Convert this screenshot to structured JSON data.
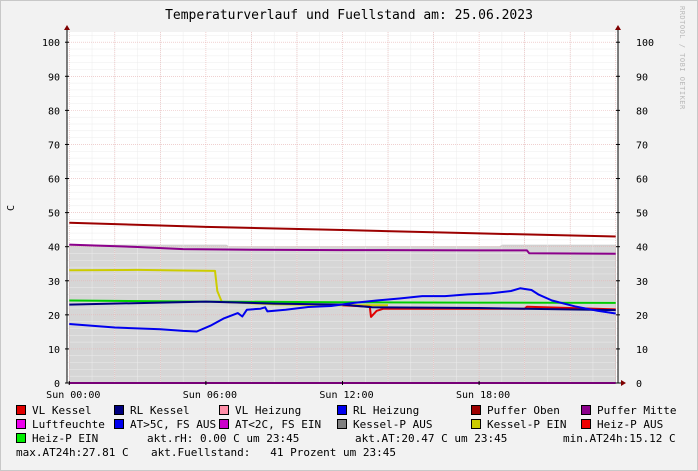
{
  "title": "Temperaturverlauf und Fuellstand am: 25.06.2023",
  "watermark": "RRDTOOL / TOBI OETIKER",
  "chart_data": {
    "type": "line",
    "title": "Temperaturverlauf und Fuellstand am: 25.06.2023",
    "ylabel": "C",
    "xlabel": "",
    "ylim": [
      0,
      103
    ],
    "xlim": [
      -0.1,
      24.1
    ],
    "yticks": [
      0,
      10,
      20,
      30,
      40,
      50,
      60,
      70,
      80,
      90,
      100
    ],
    "xticks": [
      {
        "x": 0,
        "label": "Sun 00:00"
      },
      {
        "x": 6,
        "label": "Sun 06:00"
      },
      {
        "x": 12,
        "label": "Sun 12:00"
      },
      {
        "x": 18,
        "label": "Sun 18:00"
      }
    ],
    "grid": true,
    "area": {
      "name": "Fuellstand",
      "color": "#d6d6d6",
      "points": [
        [
          0,
          40.5
        ],
        [
          6.9,
          40.5
        ],
        [
          7.0,
          40.0
        ],
        [
          18.9,
          40.0
        ],
        [
          19.0,
          40.5
        ],
        [
          24,
          40.5
        ]
      ]
    },
    "series": [
      {
        "name": "Puffer Oben",
        "color": "#9c0000",
        "points": [
          [
            0,
            47
          ],
          [
            6,
            45.8
          ],
          [
            12,
            44.9
          ],
          [
            18,
            43.9
          ],
          [
            24,
            43
          ]
        ]
      },
      {
        "name": "Puffer Mitte",
        "color": "#8b008b",
        "points": [
          [
            0,
            40.6
          ],
          [
            3,
            39.9
          ],
          [
            5,
            39.3
          ],
          [
            8,
            39.1
          ],
          [
            12,
            39.0
          ],
          [
            18,
            38.9
          ],
          [
            20.1,
            38.9
          ],
          [
            20.2,
            38.1
          ],
          [
            24,
            37.9
          ]
        ]
      },
      {
        "name": "Kessel-P EIN",
        "color": "#cccc00",
        "points": [
          [
            0,
            33.1
          ],
          [
            3,
            33.2
          ],
          [
            5,
            33.0
          ],
          [
            6.4,
            32.9
          ],
          [
            6.5,
            27.0
          ],
          [
            6.7,
            23.8
          ],
          [
            9,
            23.1
          ],
          [
            12,
            22.8
          ],
          [
            14,
            22.8
          ]
        ]
      },
      {
        "name": "Heiz-P EIN",
        "color": "#00cc00",
        "points": [
          [
            0,
            24.2
          ],
          [
            6,
            23.9
          ],
          [
            12,
            23.7
          ],
          [
            18,
            23.6
          ],
          [
            24,
            23.5
          ]
        ]
      },
      {
        "name": "VL Kessel",
        "color": "#e00000",
        "points": [
          [
            12,
            22.8
          ],
          [
            13.2,
            22.4
          ],
          [
            13.25,
            19.4
          ],
          [
            13.5,
            21.2
          ],
          [
            13.8,
            21.8
          ],
          [
            18,
            21.8
          ],
          [
            20.0,
            21.8
          ],
          [
            20.1,
            22.4
          ],
          [
            22,
            22.0
          ],
          [
            24,
            21.6
          ]
        ]
      },
      {
        "name": "RL Kessel",
        "color": "#00007f",
        "points": [
          [
            0,
            23.0
          ],
          [
            6,
            23.9
          ],
          [
            9,
            23.3
          ],
          [
            12,
            23.0
          ],
          [
            13.3,
            22.2
          ],
          [
            18,
            22.0
          ],
          [
            24,
            21.4
          ]
        ]
      },
      {
        "name": "RL Heizung",
        "color": "#0000ee",
        "points": [
          [
            0,
            17.3
          ],
          [
            2,
            16.3
          ],
          [
            4,
            15.8
          ],
          [
            5,
            15.3
          ],
          [
            5.6,
            15.1
          ],
          [
            6.2,
            16.8
          ],
          [
            6.8,
            19.0
          ],
          [
            7.4,
            20.5
          ],
          [
            7.6,
            19.5
          ],
          [
            7.8,
            21.5
          ],
          [
            8.4,
            21.8
          ],
          [
            8.6,
            22.2
          ],
          [
            8.7,
            21.0
          ],
          [
            9.5,
            21.5
          ],
          [
            10.5,
            22.3
          ],
          [
            11.5,
            22.6
          ],
          [
            12.5,
            23.5
          ],
          [
            13.5,
            24.2
          ],
          [
            14.5,
            24.8
          ],
          [
            15.5,
            25.5
          ],
          [
            16.5,
            25.5
          ],
          [
            17.5,
            26.0
          ],
          [
            18.5,
            26.3
          ],
          [
            19.4,
            27.0
          ],
          [
            19.8,
            27.8
          ],
          [
            20.3,
            27.3
          ],
          [
            20.6,
            26.0
          ],
          [
            21.2,
            24.2
          ],
          [
            22.2,
            22.5
          ],
          [
            23.2,
            21.2
          ],
          [
            24,
            20.4
          ]
        ]
      },
      {
        "name": "Luftfeuchte",
        "color": "#ee00ee",
        "points": [
          [
            0,
            0
          ],
          [
            24,
            0
          ]
        ]
      }
    ],
    "legend": {
      "placement": "bottom",
      "rows": [
        [
          {
            "label": "VL Kessel",
            "color": "#e00000"
          },
          {
            "label": "RL Kessel",
            "color": "#00007f"
          },
          {
            "label": "VL Heizung",
            "color": "#ff8fa8"
          },
          {
            "label": "RL Heizung",
            "color": "#0000ee"
          },
          {
            "label": "Puffer Oben",
            "color": "#9c0000"
          },
          {
            "label": "Puffer Mitte",
            "color": "#8b008b"
          }
        ],
        [
          {
            "label": "Luftfeuchte",
            "color": "#ee00ee"
          },
          {
            "label": "AT>5C, FS AUS",
            "color": "#0000ee"
          },
          {
            "label": "AT<2C, FS EIN",
            "color": "#cc00cc"
          },
          {
            "label": "Kessel-P AUS",
            "color": "#808080"
          },
          {
            "label": "Kessel-P EIN",
            "color": "#cccc00"
          },
          {
            "label": "Heiz-P AUS",
            "color": "#ee0000"
          }
        ],
        [
          {
            "label": "Heiz-P EIN",
            "color": "#00ee00"
          }
        ]
      ],
      "stats_row3": [
        "akt.rH: 0.00 C um 23:45",
        "akt.AT:20.47 C um 23:45",
        "min.AT24h:15.12 C"
      ],
      "stats_row4": [
        "max.AT24h:27.81 C",
        "akt.Fuellstand:   41 Prozent um 23:45"
      ]
    }
  }
}
